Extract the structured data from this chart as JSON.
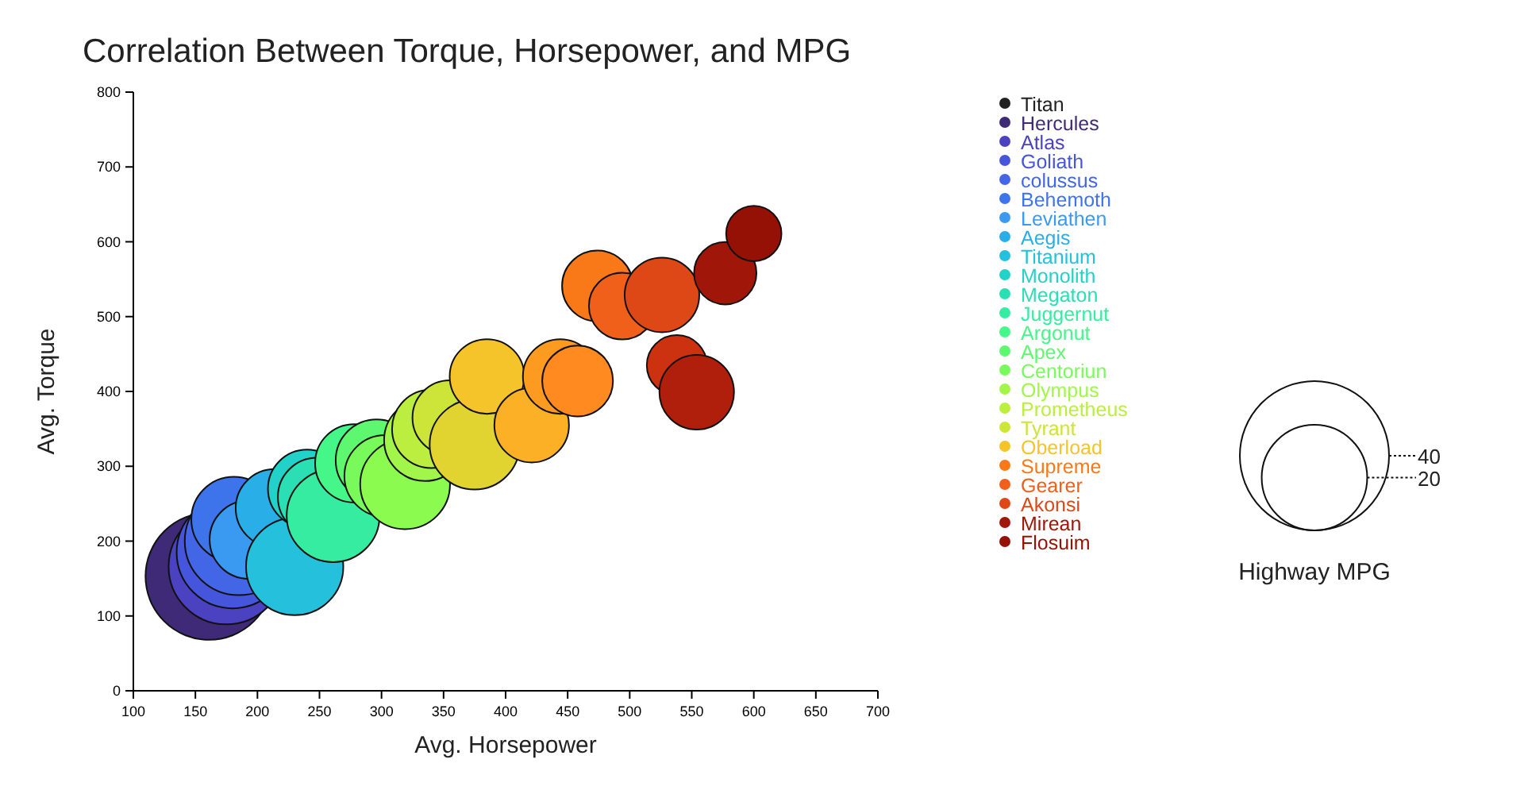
{
  "chart_data": {
    "type": "bubble",
    "title": "Correlation Between Torque, Horsepower, and MPG",
    "xlabel": "Avg. Horsepower",
    "ylabel": "Avg. Torque",
    "legend_title": "Highway MPG",
    "xlim": [
      100,
      700
    ],
    "ylim": [
      0,
      800
    ],
    "xticks": [
      100,
      150,
      200,
      250,
      300,
      350,
      400,
      450,
      500,
      550,
      600,
      650,
      700
    ],
    "yticks": [
      0,
      100,
      200,
      300,
      400,
      500,
      600,
      700,
      800
    ],
    "size_legend": [
      40,
      20
    ],
    "legend": "right",
    "series": [
      {
        "name": "Titan",
        "color": "#222222",
        "x": [
          null
        ],
        "values": [
          null
        ],
        "sizes": [
          null
        ]
      },
      {
        "name": "Hercules",
        "color": "#3f2a78",
        "x": [
          161
        ],
        "values": [
          153
        ],
        "sizes": [
          29
        ]
      },
      {
        "name": "Atlas",
        "color": "#4a42c0",
        "x": [
          175
        ],
        "values": [
          166
        ],
        "sizes": [
          24
        ]
      },
      {
        "name": "Goliath",
        "color": "#4656dc",
        "x": [
          180
        ],
        "values": [
          185
        ],
        "sizes": [
          22.5
        ]
      },
      {
        "name": "colussus",
        "color": "#4366e6",
        "x": [
          185
        ],
        "values": [
          200
        ],
        "sizes": [
          21
        ]
      },
      {
        "name": "Behemoth",
        "color": "#3d74ec",
        "x": [
          181
        ],
        "values": [
          229
        ],
        "sizes": [
          13
        ]
      },
      {
        "name": "Leviathen",
        "color": "#3a9af2",
        "x": [
          193
        ],
        "values": [
          202
        ],
        "sizes": [
          11
        ]
      },
      {
        "name": "Aegis",
        "color": "#2aaee8",
        "x": [
          214
        ],
        "values": [
          244
        ],
        "sizes": [
          11
        ]
      },
      {
        "name": "Titanium",
        "color": "#25c0dc",
        "x": [
          230
        ],
        "values": [
          166
        ],
        "sizes": [
          17
        ]
      },
      {
        "name": "Monolith",
        "color": "#22d2c8",
        "x": [
          240
        ],
        "values": [
          270
        ],
        "sizes": [
          11
        ]
      },
      {
        "name": "Megaton",
        "color": "#2adfb4",
        "x": [
          248
        ],
        "values": [
          259
        ],
        "sizes": [
          11
        ]
      },
      {
        "name": "Juggernut",
        "color": "#35eca0",
        "x": [
          261
        ],
        "values": [
          234
        ],
        "sizes": [
          15.5
        ]
      },
      {
        "name": "Argonut",
        "color": "#45f688",
        "x": [
          278
        ],
        "values": [
          304
        ],
        "sizes": [
          11
        ]
      },
      {
        "name": "Apex",
        "color": "#5ef870",
        "x": [
          296
        ],
        "values": [
          308
        ],
        "sizes": [
          12
        ]
      },
      {
        "name": "Centoriun",
        "color": "#78fb5a",
        "x": [
          303
        ],
        "values": [
          287
        ],
        "sizes": [
          12
        ]
      },
      {
        "name": null,
        "color": "#8cfb50",
        "x": [
          319
        ],
        "values": [
          276
        ],
        "sizes": [
          14.5
        ]
      },
      {
        "name": "Olympus",
        "color": "#a2f64a",
        "x": [
          335
        ],
        "values": [
          335
        ],
        "sizes": [
          12
        ]
      },
      {
        "name": "Prometheus",
        "color": "#bcee40",
        "x": [
          340
        ],
        "values": [
          350
        ],
        "sizes": [
          11
        ]
      },
      {
        "name": "Tyrant",
        "color": "#cde538",
        "x": [
          355
        ],
        "values": [
          365
        ],
        "sizes": [
          10
        ]
      },
      {
        "name": null,
        "color": "#e2d430",
        "x": [
          375
        ],
        "values": [
          329
        ],
        "sizes": [
          14.5
        ]
      },
      {
        "name": "Oberload",
        "color": "#f5c42a",
        "x": [
          385
        ],
        "values": [
          420
        ],
        "sizes": [
          10
        ]
      },
      {
        "name": null,
        "color": "#fbb025",
        "x": [
          421
        ],
        "values": [
          355
        ],
        "sizes": [
          10
        ]
      },
      {
        "name": null,
        "color": "#fd9a20",
        "x": [
          444
        ],
        "values": [
          420
        ],
        "sizes": [
          10
        ]
      },
      {
        "name": null,
        "color": "#fe8a20",
        "x": [
          458
        ],
        "values": [
          414
        ],
        "sizes": [
          9
        ]
      },
      {
        "name": "Supreme",
        "color": "#f97818",
        "x": [
          474
        ],
        "values": [
          541
        ],
        "sizes": [
          9
        ]
      },
      {
        "name": "Gearer",
        "color": "#f0601a",
        "x": [
          494
        ],
        "values": [
          514
        ],
        "sizes": [
          8
        ]
      },
      {
        "name": "Akonsi",
        "color": "#de4716",
        "x": [
          526
        ],
        "values": [
          529
        ],
        "sizes": [
          10
        ]
      },
      {
        "name": null,
        "color": "#cc3210",
        "x": [
          538
        ],
        "values": [
          435
        ],
        "sizes": [
          6.5
        ]
      },
      {
        "name": null,
        "color": "#b01f0c",
        "x": [
          554
        ],
        "values": [
          399
        ],
        "sizes": [
          10
        ]
      },
      {
        "name": "Mirean",
        "color": "#a01608",
        "x": [
          577
        ],
        "values": [
          558
        ],
        "sizes": [
          7
        ]
      },
      {
        "name": "Flosuim",
        "color": "#951005",
        "x": [
          600
        ],
        "values": [
          611
        ],
        "sizes": [
          5.5
        ]
      }
    ]
  }
}
